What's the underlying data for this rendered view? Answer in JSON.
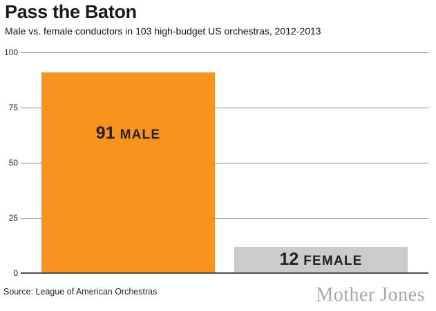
{
  "header": {
    "title": "Pass the Baton",
    "subtitle": "Male vs. female conductors in 103 high-budget US orchestras, 2012-2013"
  },
  "footer": {
    "source": "Source: League of American Orchestras",
    "brand": "Mother Jones"
  },
  "chart_data": {
    "type": "bar",
    "title": "Pass the Baton",
    "subtitle": "Male vs. female conductors in 103 high-budget US orchestras, 2012-2013",
    "categories": [
      "Male",
      "Female"
    ],
    "values": [
      91,
      12
    ],
    "bar_labels": [
      {
        "number": "91",
        "name": "MALE"
      },
      {
        "number": "12",
        "name": "FEMALE"
      }
    ],
    "bar_colors": [
      "#F7941E",
      "#CBCBCB"
    ],
    "label_color": "#231F20",
    "xlabel": "",
    "ylabel": "",
    "ylim": [
      0,
      100
    ],
    "yticks": [
      100,
      75,
      50,
      25,
      0
    ],
    "grid": true,
    "legend": "none",
    "gridline_color": "#848484",
    "axis_line_color": "#4D4D4F",
    "brand_color": "#A4A6A9"
  }
}
